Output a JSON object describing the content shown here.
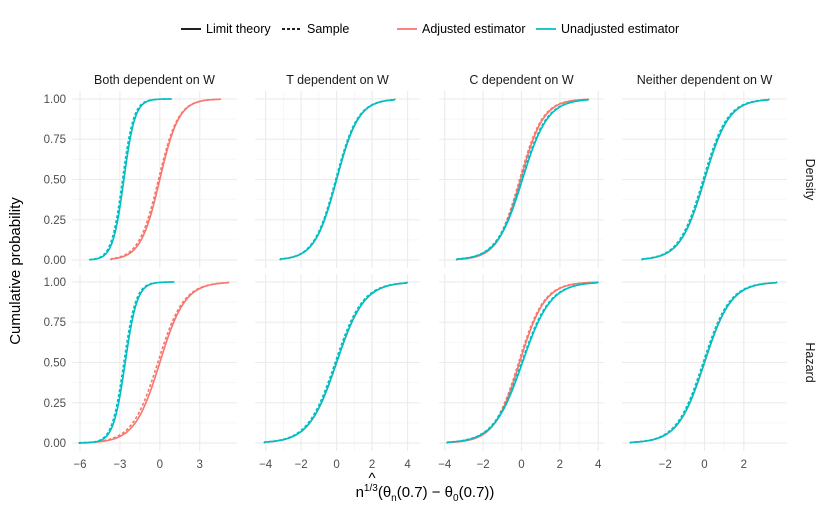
{
  "chart_data": {
    "type": "line",
    "title": "",
    "ylabel": "Cumulative probability",
    "xlabel_parts": {
      "n": "n",
      "exp": "1/3",
      "theta": "θ",
      "hat": "^",
      "sub_n": "n",
      "sub_0": "0",
      "arg": "(0.7)",
      "minus": "−",
      "open": "(",
      "close": ")"
    },
    "columns": [
      "Both dependent on W",
      "T dependent on W",
      "C dependent on W",
      "Neither dependent on W"
    ],
    "rows": [
      "Density",
      "Hazard"
    ],
    "ylim": [
      0,
      1
    ],
    "y_ticks": [
      0,
      0.25,
      0.5,
      0.75,
      1
    ],
    "y_tick_labels": [
      "0.00",
      "0.25",
      "0.50",
      "0.75",
      "1.00"
    ],
    "x_axes": [
      {
        "xlim": [
          -6.6,
          5.8
        ],
        "ticks": [
          -6,
          -3,
          0,
          3
        ],
        "tick_labels": [
          "−6",
          "−3",
          "0",
          "3"
        ]
      },
      {
        "xlim": [
          -4.6,
          4.7
        ],
        "ticks": [
          -4,
          -2,
          0,
          2,
          4
        ],
        "tick_labels": [
          "−4",
          "−2",
          "0",
          "2",
          "4"
        ]
      },
      {
        "xlim": [
          -4.3,
          4.3
        ],
        "ticks": [
          -4,
          -2,
          0,
          2,
          4
        ],
        "tick_labels": [
          "−4",
          "−2",
          "0",
          "2",
          "4"
        ]
      },
      {
        "xlim": [
          -4.2,
          4.2
        ],
        "ticks": [
          -2,
          0,
          2
        ],
        "tick_labels": [
          "−2",
          "0",
          "2"
        ]
      }
    ],
    "legend": {
      "linetype_items": [
        {
          "label": "Limit theory",
          "dash": "solid"
        },
        {
          "label": "Sample",
          "dash": "dashed"
        }
      ],
      "color_items": [
        {
          "label": "Adjusted estimator",
          "color": "#F8766D"
        },
        {
          "label": "Unadjusted estimator",
          "color": "#00BFC4"
        }
      ],
      "position": "top"
    },
    "series_colors": {
      "Adjusted estimator": "#F8766D",
      "Unadjusted estimator": "#00BFC4"
    },
    "panels": [
      {
        "row": "Density",
        "column": "Both dependent on W",
        "curves": [
          {
            "estimator": "Adjusted estimator",
            "type": "Limit theory",
            "center": 0.0,
            "scale": 0.72,
            "range": [
              -3.7,
              4.6
            ]
          },
          {
            "estimator": "Adjusted estimator",
            "type": "Sample",
            "center": -0.1,
            "scale": 0.74,
            "range": [
              -3.7,
              4.6
            ]
          },
          {
            "estimator": "Unadjusted estimator",
            "type": "Limit theory",
            "center": -2.7,
            "scale": 0.42,
            "range": [
              -5.3,
              0.9
            ]
          },
          {
            "estimator": "Unadjusted estimator",
            "type": "Sample",
            "center": -2.8,
            "scale": 0.42,
            "range": [
              -5.3,
              0.9
            ]
          }
        ]
      },
      {
        "row": "Density",
        "column": "T dependent on W",
        "curves": [
          {
            "estimator": "Adjusted estimator",
            "type": "Limit theory",
            "center": 0.0,
            "scale": 0.62,
            "range": [
              -3.2,
              3.3
            ]
          },
          {
            "estimator": "Unadjusted estimator",
            "type": "Limit theory",
            "center": 0.0,
            "scale": 0.62,
            "range": [
              -3.2,
              3.3
            ]
          },
          {
            "estimator": "Unadjusted estimator",
            "type": "Sample",
            "center": -0.05,
            "scale": 0.62,
            "range": [
              -3.2,
              3.3
            ]
          }
        ]
      },
      {
        "row": "Density",
        "column": "C dependent on W",
        "curves": [
          {
            "estimator": "Adjusted estimator",
            "type": "Limit theory",
            "center": -0.05,
            "scale": 0.6,
            "range": [
              -3.4,
              3.5
            ]
          },
          {
            "estimator": "Adjusted estimator",
            "type": "Sample",
            "center": -0.1,
            "scale": 0.6,
            "range": [
              -3.4,
              3.5
            ]
          },
          {
            "estimator": "Unadjusted estimator",
            "type": "Limit theory",
            "center": 0.05,
            "scale": 0.66,
            "range": [
              -3.4,
              3.5
            ]
          },
          {
            "estimator": "Unadjusted estimator",
            "type": "Sample",
            "center": 0.0,
            "scale": 0.66,
            "range": [
              -3.4,
              3.5
            ]
          }
        ]
      },
      {
        "row": "Density",
        "column": "Neither dependent on W",
        "curves": [
          {
            "estimator": "Adjusted estimator",
            "type": "Limit theory",
            "center": 0.0,
            "scale": 0.62,
            "range": [
              -3.2,
              3.3
            ]
          },
          {
            "estimator": "Unadjusted estimator",
            "type": "Limit theory",
            "center": 0.0,
            "scale": 0.62,
            "range": [
              -3.2,
              3.3
            ]
          },
          {
            "estimator": "Unadjusted estimator",
            "type": "Sample",
            "center": -0.07,
            "scale": 0.62,
            "range": [
              -3.2,
              3.3
            ]
          }
        ]
      },
      {
        "row": "Hazard",
        "column": "Both dependent on W",
        "curves": [
          {
            "estimator": "Adjusted estimator",
            "type": "Limit theory",
            "center": 0.0,
            "scale": 0.95,
            "range": [
              -6.1,
              5.2
            ]
          },
          {
            "estimator": "Adjusted estimator",
            "type": "Sample",
            "center": -0.15,
            "scale": 0.97,
            "range": [
              -6.1,
              5.2
            ]
          },
          {
            "estimator": "Unadjusted estimator",
            "type": "Limit theory",
            "center": -2.6,
            "scale": 0.45,
            "range": [
              -6.1,
              1.1
            ]
          },
          {
            "estimator": "Unadjusted estimator",
            "type": "Sample",
            "center": -2.7,
            "scale": 0.45,
            "range": [
              -6.1,
              1.1
            ]
          }
        ]
      },
      {
        "row": "Hazard",
        "column": "T dependent on W",
        "curves": [
          {
            "estimator": "Adjusted estimator",
            "type": "Limit theory",
            "center": 0.0,
            "scale": 0.78,
            "range": [
              -4.1,
              4.0
            ]
          },
          {
            "estimator": "Unadjusted estimator",
            "type": "Limit theory",
            "center": 0.0,
            "scale": 0.78,
            "range": [
              -4.1,
              4.0
            ]
          },
          {
            "estimator": "Unadjusted estimator",
            "type": "Sample",
            "center": -0.08,
            "scale": 0.78,
            "range": [
              -4.1,
              4.0
            ]
          }
        ]
      },
      {
        "row": "Hazard",
        "column": "C dependent on W",
        "curves": [
          {
            "estimator": "Adjusted estimator",
            "type": "Limit theory",
            "center": -0.1,
            "scale": 0.66,
            "range": [
              -3.9,
              4.0
            ]
          },
          {
            "estimator": "Adjusted estimator",
            "type": "Sample",
            "center": -0.15,
            "scale": 0.66,
            "range": [
              -3.9,
              4.0
            ]
          },
          {
            "estimator": "Unadjusted estimator",
            "type": "Limit theory",
            "center": 0.05,
            "scale": 0.74,
            "range": [
              -3.9,
              4.0
            ]
          },
          {
            "estimator": "Unadjusted estimator",
            "type": "Sample",
            "center": 0.0,
            "scale": 0.74,
            "range": [
              -3.9,
              4.0
            ]
          }
        ]
      },
      {
        "row": "Hazard",
        "column": "Neither dependent on W",
        "curves": [
          {
            "estimator": "Adjusted estimator",
            "type": "Limit theory",
            "center": 0.0,
            "scale": 0.68,
            "range": [
              -3.8,
              3.7
            ]
          },
          {
            "estimator": "Unadjusted estimator",
            "type": "Limit theory",
            "center": 0.0,
            "scale": 0.68,
            "range": [
              -3.8,
              3.7
            ]
          },
          {
            "estimator": "Unadjusted estimator",
            "type": "Sample",
            "center": -0.07,
            "scale": 0.68,
            "range": [
              -3.8,
              3.7
            ]
          }
        ]
      }
    ]
  }
}
